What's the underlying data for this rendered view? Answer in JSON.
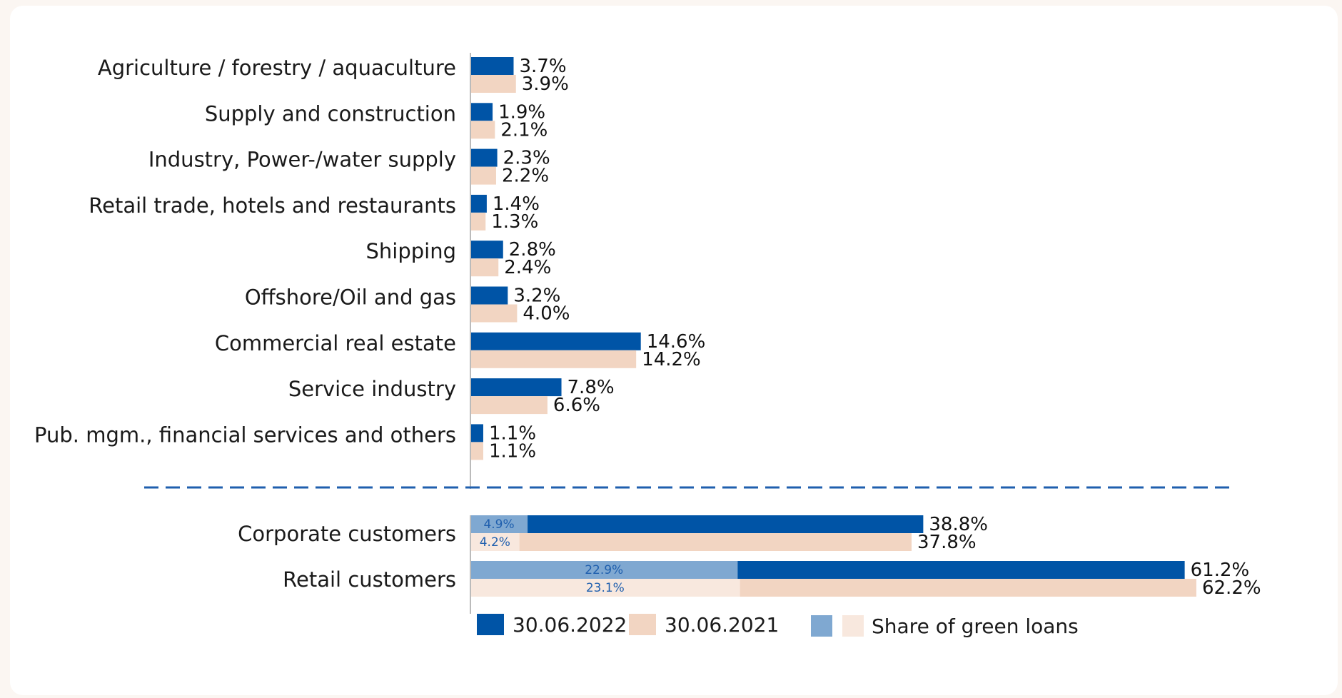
{
  "chart_data": {
    "type": "bar",
    "orientation": "horizontal",
    "title": "",
    "xlabel": "",
    "ylabel": "",
    "colors": {
      "s2022": "#0054a6",
      "s2021": "#f2d5c2",
      "green2022": "#7fa8d1",
      "green2021": "#f8e8de",
      "divider": "#1f5fae",
      "axis": "#bbbbbb"
    },
    "sectors": {
      "categories": [
        "Agriculture / forestry / aquaculture",
        "Supply and construction",
        "Industry, Power-/water supply",
        "Retail trade, hotels and restaurants",
        "Shipping",
        "Offshore/Oil and gas",
        "Commercial real estate",
        "Service industry",
        "Pub. mgm., financial services and others"
      ],
      "series": [
        {
          "name": "30.06.2022",
          "values": [
            3.7,
            1.9,
            2.3,
            1.4,
            2.8,
            3.2,
            14.6,
            7.8,
            1.1
          ],
          "labels": [
            "3.7%",
            "1.9%",
            "2.3%",
            "1.4%",
            "2.8%",
            "3.2%",
            "14.6%",
            "7.8%",
            "1.1%"
          ]
        },
        {
          "name": "30.06.2021",
          "values": [
            3.9,
            2.1,
            2.2,
            1.3,
            2.4,
            4.0,
            14.2,
            6.6,
            1.1
          ],
          "labels": [
            "3.9%",
            "2.1%",
            "2.2%",
            "1.3%",
            "2.4%",
            "4.0%",
            "14.2%",
            "6.6%",
            "1.1%"
          ]
        }
      ]
    },
    "customers": {
      "categories": [
        "Corporate customers",
        "Retail customers"
      ],
      "series": [
        {
          "name": "30.06.2022",
          "values": [
            38.8,
            61.2
          ],
          "labels": [
            "38.8%",
            "61.2%"
          ],
          "green_values": [
            4.9,
            22.9
          ],
          "green_labels": [
            "4.9%",
            "22.9%"
          ]
        },
        {
          "name": "30.06.2021",
          "values": [
            37.8,
            62.2
          ],
          "labels": [
            "37.8%",
            "62.2%"
          ],
          "green_values": [
            4.2,
            23.1
          ],
          "green_labels": [
            "4.2%",
            "23.1%"
          ]
        }
      ]
    },
    "legend": {
      "position": "bottom",
      "items": [
        "30.06.2022",
        "30.06.2021",
        "Share of green loans"
      ]
    }
  }
}
